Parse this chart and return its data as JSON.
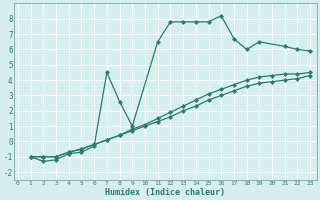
{
  "line1_x": [
    1,
    2,
    3,
    4,
    5,
    6,
    7,
    8,
    9,
    11,
    12,
    13,
    14,
    15,
    16,
    17,
    18,
    19,
    21,
    22,
    23
  ],
  "line1_y": [
    -1,
    -1.3,
    -1.2,
    -0.8,
    -0.7,
    -0.3,
    4.5,
    2.6,
    1.0,
    6.5,
    7.8,
    7.8,
    7.8,
    7.8,
    8.2,
    6.7,
    6.0,
    6.5,
    6.2,
    6.0,
    5.9
  ],
  "line2_x": [
    1,
    2,
    3,
    4,
    5,
    6,
    7,
    8,
    9,
    10,
    11,
    12,
    13,
    14,
    15,
    16,
    17,
    18,
    19,
    20,
    21,
    22,
    23
  ],
  "line2_y": [
    -1,
    -1,
    -1,
    -0.7,
    -0.5,
    -0.2,
    0.1,
    0.4,
    0.8,
    1.1,
    1.5,
    1.9,
    2.3,
    2.7,
    3.1,
    3.4,
    3.7,
    4.0,
    4.2,
    4.3,
    4.4,
    4.4,
    4.5
  ],
  "line3_x": [
    1,
    2,
    3,
    4,
    5,
    6,
    7,
    8,
    9,
    10,
    11,
    12,
    13,
    14,
    15,
    16,
    17,
    18,
    19,
    20,
    21,
    22,
    23
  ],
  "line3_y": [
    -1,
    -1,
    -1,
    -0.7,
    -0.5,
    -0.2,
    0.1,
    0.4,
    0.7,
    1.0,
    1.3,
    1.6,
    2.0,
    2.3,
    2.7,
    3.0,
    3.3,
    3.6,
    3.8,
    3.9,
    4.0,
    4.1,
    4.3
  ],
  "color": "#2a7b6f",
  "bg_color": "#d6eeee",
  "grid_color": "#b8d8d8",
  "xlabel": "Humidex (Indice chaleur)",
  "ylim": [
    -2.5,
    9.0
  ],
  "xlim": [
    -0.3,
    23.5
  ],
  "yticks": [
    -2,
    -1,
    0,
    1,
    2,
    3,
    4,
    5,
    6,
    7,
    8
  ],
  "xticks": [
    0,
    1,
    2,
    3,
    4,
    5,
    6,
    7,
    8,
    9,
    10,
    11,
    12,
    13,
    14,
    15,
    16,
    17,
    18,
    19,
    20,
    21,
    22,
    23
  ],
  "marker": "D",
  "markersize": 2.0,
  "linewidth": 0.9
}
